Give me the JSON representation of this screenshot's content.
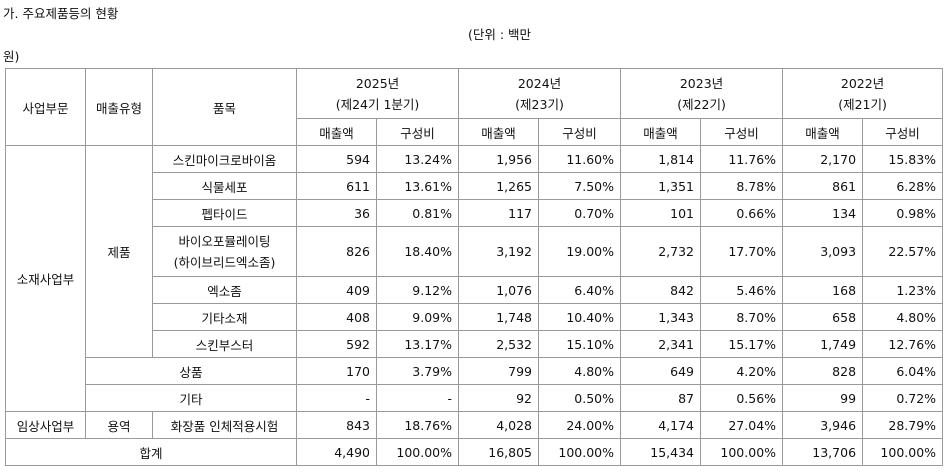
{
  "title": "가. 주요제품등의 현황",
  "unit": [
    "(단위 : 백만",
    "원)"
  ],
  "header": {
    "division": "사업부문",
    "type": "매출유형",
    "item": "품목",
    "periods": [
      {
        "year": "2025년",
        "term": "(제24기 1분기)"
      },
      {
        "year": "2024년",
        "term": "(제23기)"
      },
      {
        "year": "2023년",
        "term": "(제22기)"
      },
      {
        "year": "2022년",
        "term": "(제21기)"
      }
    ],
    "sales": "매출액",
    "ratio": "구성비"
  },
  "rows": [
    {
      "division": "소재사업부",
      "type": "제품",
      "item": [
        "스킨마이크로바이옴"
      ],
      "cells": [
        "594",
        "13.24%",
        "1,956",
        "11.60%",
        "1,814",
        "11.76%",
        "2,170",
        "15.83%"
      ]
    },
    {
      "item": [
        "식물세포"
      ],
      "cells": [
        "611",
        "13.61%",
        "1,265",
        "7.50%",
        "1,351",
        "8.78%",
        "861",
        "6.28%"
      ]
    },
    {
      "item": [
        "펩타이드"
      ],
      "cells": [
        "36",
        "0.81%",
        "117",
        "0.70%",
        "101",
        "0.66%",
        "134",
        "0.98%"
      ]
    },
    {
      "item": [
        "바이오포뮬레이팅",
        "(하이브리드엑소좀)"
      ],
      "cells": [
        "826",
        "18.40%",
        "3,192",
        "19.00%",
        "2,732",
        "17.70%",
        "3,093",
        "22.57%"
      ]
    },
    {
      "item": [
        "엑소좀"
      ],
      "cells": [
        "409",
        "9.12%",
        "1,076",
        "6.40%",
        "842",
        "5.46%",
        "168",
        "1.23%"
      ]
    },
    {
      "item": [
        "기타소재"
      ],
      "cells": [
        "408",
        "9.09%",
        "1,748",
        "10.40%",
        "1,343",
        "8.70%",
        "658",
        "4.80%"
      ]
    },
    {
      "item": [
        "스킨부스터"
      ],
      "cells": [
        "592",
        "13.17%",
        "2,532",
        "15.10%",
        "2,341",
        "15.17%",
        "1,749",
        "12.76%"
      ]
    },
    {
      "merged": "상품",
      "cells": [
        "170",
        "3.79%",
        "799",
        "4.80%",
        "649",
        "4.20%",
        "828",
        "6.04%"
      ]
    },
    {
      "merged": "기타",
      "cells": [
        "-",
        "-",
        "92",
        "0.50%",
        "87",
        "0.56%",
        "99",
        "0.72%"
      ]
    },
    {
      "division": "임상사업부",
      "type": "용역",
      "item": [
        "화장품 인체적용시험"
      ],
      "cells": [
        "843",
        "18.76%",
        "4,028",
        "24.00%",
        "4,174",
        "27.04%",
        "3,946",
        "28.79%"
      ]
    },
    {
      "total": "합계",
      "cells": [
        "4,490",
        "100.00%",
        "16,805",
        "100.00%",
        "15,434",
        "100.00%",
        "13,706",
        "100.00%"
      ]
    }
  ]
}
